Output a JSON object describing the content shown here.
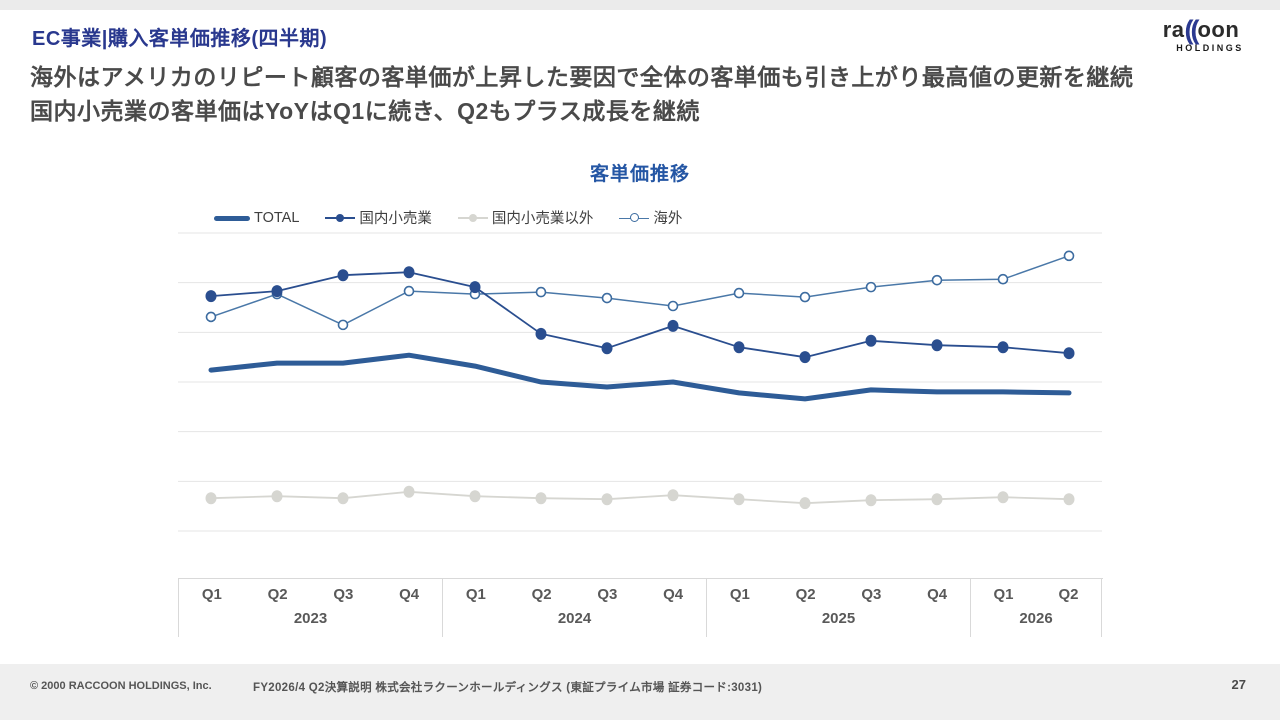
{
  "page": {
    "title": "EC事業|購入客単価推移(四半期)",
    "subtitle_line1": "海外はアメリカのリピート顧客の客単価が上昇した要因で全体の客単価も引き上がり最高値の更新を継続",
    "subtitle_line2": "国内小売業の客単価はYoYはQ1に続き、Q2もプラス成長を継続"
  },
  "logo": {
    "part1": "ra",
    "parens": "((",
    "part2": "oon",
    "sub": "HOLDINGS"
  },
  "chart": {
    "title": "客単価推移",
    "legend": [
      {
        "label": "TOTAL",
        "marker": "thick-line",
        "color": "#2E5C97"
      },
      {
        "label": "国内小売業",
        "marker": "line-filled-dot",
        "color": "#2A4E8F"
      },
      {
        "label": "国内小売業以外",
        "marker": "line-filled-dot",
        "color": "#D6D6D1"
      },
      {
        "label": "海外",
        "marker": "line-open-dot",
        "color": "#4A78A8"
      }
    ]
  },
  "chart_data": {
    "type": "line",
    "title": "客単価推移",
    "x": [
      "2023 Q1",
      "2023 Q2",
      "2023 Q3",
      "2023 Q4",
      "2024 Q1",
      "2024 Q2",
      "2024 Q3",
      "2024 Q4",
      "2025 Q1",
      "2025 Q2",
      "2025 Q3",
      "2025 Q4",
      "2026 Q1",
      "2026 Q2"
    ],
    "note": "y-axis tick labels are not shown in the figure; values are relative units estimated from the 6 gridline intervals (0 = bottom gridline, 6 = top gridline)",
    "ylim": [
      0,
      6
    ],
    "gridline_count": 7,
    "legend_position": "top-left",
    "series": [
      {
        "name": "TOTAL",
        "color": "#2E5C97",
        "style": "thick",
        "values": [
          3.24,
          3.38,
          3.38,
          3.54,
          3.32,
          3.0,
          2.9,
          3.0,
          2.78,
          2.66,
          2.84,
          2.8,
          2.8,
          2.78
        ]
      },
      {
        "name": "国内小売業",
        "color": "#2A4E8F",
        "style": "filled-dots",
        "values": [
          4.73,
          4.83,
          5.15,
          5.21,
          4.91,
          3.97,
          3.68,
          4.13,
          3.7,
          3.5,
          3.83,
          3.74,
          3.7,
          3.58
        ]
      },
      {
        "name": "国内小売業以外",
        "color": "#D6D6D1",
        "style": "filled-dots",
        "values": [
          0.66,
          0.7,
          0.66,
          0.79,
          0.7,
          0.66,
          0.64,
          0.72,
          0.64,
          0.56,
          0.62,
          0.64,
          0.68,
          0.64
        ]
      },
      {
        "name": "海外",
        "color": "#4A78A8",
        "style": "open-dots",
        "values": [
          4.31,
          4.77,
          4.15,
          4.83,
          4.77,
          4.81,
          4.69,
          4.53,
          4.79,
          4.71,
          4.91,
          5.05,
          5.07,
          5.54
        ]
      }
    ]
  },
  "axis": {
    "years": [
      {
        "label": "2023",
        "quarters": [
          "Q1",
          "Q2",
          "Q3",
          "Q4"
        ]
      },
      {
        "label": "2024",
        "quarters": [
          "Q1",
          "Q2",
          "Q3",
          "Q4"
        ]
      },
      {
        "label": "2025",
        "quarters": [
          "Q1",
          "Q2",
          "Q3",
          "Q4"
        ]
      },
      {
        "label": "2026",
        "quarters": [
          "Q1",
          "Q2"
        ]
      }
    ]
  },
  "footer": {
    "copyright": "© 2000 RACCOON HOLDINGS, Inc.",
    "description": "FY2026/4 Q2決算説明 株式会社ラクーンホールディングス (東証プライム市場 証券コード:3031)",
    "page_number": "27"
  },
  "colors": {
    "title_blue": "#29388E",
    "chart_title_blue": "#2456A4",
    "total_line": "#2E5C97",
    "domestic_retail": "#2A4E8F",
    "non_retail_gray": "#D6D6D1",
    "overseas": "#4A78A8",
    "gridline": "#E4E4E4",
    "footer_bg": "#efefef"
  }
}
